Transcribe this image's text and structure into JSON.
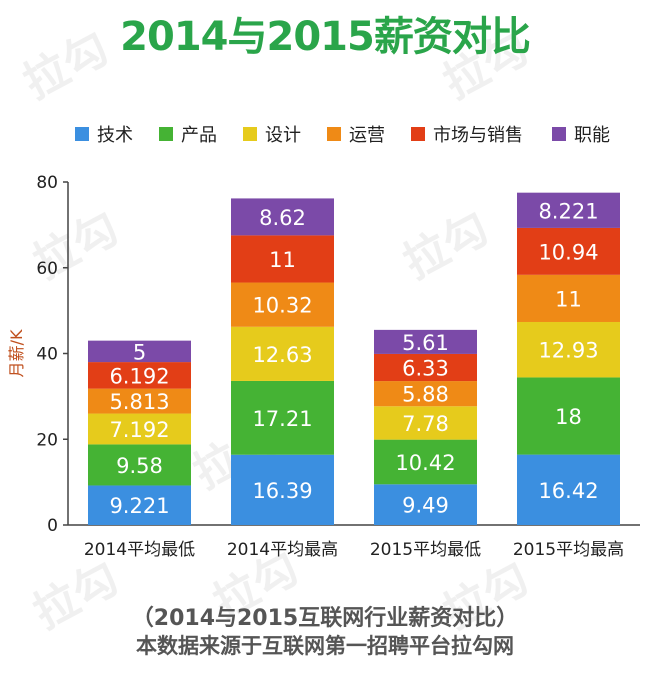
{
  "title": "2014与2015薪资对比",
  "footer": {
    "line1": "（2014与2015互联网行业薪资对比）",
    "line2": "本数据来源于互联网第一招聘平台拉勾网"
  },
  "watermark": "拉勾",
  "chart_data": {
    "type": "bar",
    "stacked": true,
    "categories": [
      "2014平均最低",
      "2014平均最高",
      "2015平均最低",
      "2015平均最高"
    ],
    "ylabel": "月薪/K",
    "ylim": [
      0,
      80
    ],
    "yticks": [
      0,
      20,
      40,
      60,
      80
    ],
    "grid": false,
    "legend_position": "top",
    "series": [
      {
        "name": "技术",
        "color": "#3b8fe0",
        "values": [
          9.221,
          16.39,
          9.49,
          16.42
        ],
        "labels": [
          "9.221",
          "16.39",
          "9.49",
          "16.42"
        ]
      },
      {
        "name": "产品",
        "color": "#45b334",
        "values": [
          9.58,
          17.21,
          10.42,
          18
        ],
        "labels": [
          "9.58",
          "17.21",
          "10.42",
          "18"
        ]
      },
      {
        "name": "设计",
        "color": "#e6cb1c",
        "values": [
          7.192,
          12.63,
          7.78,
          12.93
        ],
        "labels": [
          "7.192",
          "12.63",
          "7.78",
          "12.93"
        ]
      },
      {
        "name": "运营",
        "color": "#ef8a16",
        "values": [
          5.813,
          10.32,
          5.88,
          11
        ],
        "labels": [
          "5.813",
          "10.32",
          "5.88",
          "11"
        ]
      },
      {
        "name": "市场与销售",
        "color": "#e23e16",
        "values": [
          6.192,
          11,
          6.33,
          10.94
        ],
        "labels": [
          "6.192",
          "11",
          "6.33",
          "10.94"
        ]
      },
      {
        "name": "职能",
        "color": "#7b4aa8",
        "values": [
          5,
          8.62,
          5.61,
          8.221
        ],
        "labels": [
          "5",
          "8.62",
          "5.61",
          "8.221"
        ]
      }
    ]
  }
}
